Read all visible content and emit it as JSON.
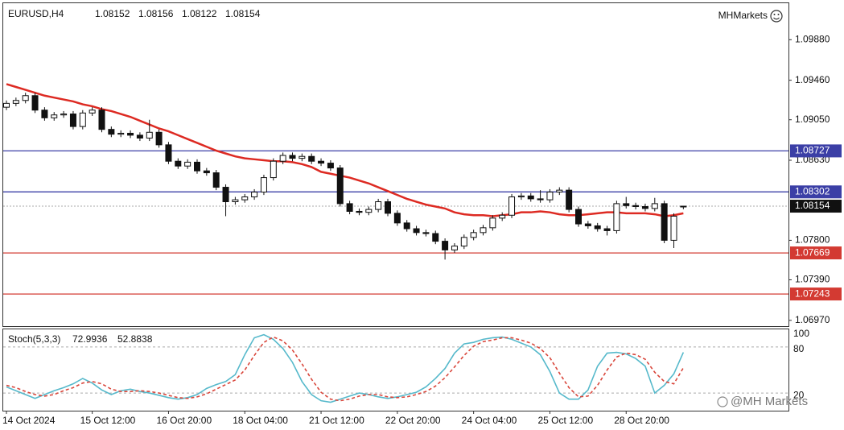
{
  "chart_data": {
    "type": "candlestick",
    "symbol": "EURUSD,H4",
    "brand": "MHMarkets",
    "watermark": "@MH Markets",
    "categories": [
      "14 Oct 2024",
      null,
      null,
      null,
      null,
      null,
      null,
      null,
      null,
      "15 Oct 12:00",
      null,
      null,
      null,
      null,
      null,
      null,
      null,
      "16 Oct 20:00",
      null,
      null,
      null,
      null,
      null,
      null,
      null,
      "18 Oct 04:00",
      null,
      null,
      null,
      null,
      null,
      null,
      null,
      "21 Oct 12:00",
      null,
      null,
      null,
      null,
      null,
      null,
      null,
      "22 Oct 20:00",
      null,
      null,
      null,
      null,
      null,
      null,
      null,
      "24 Oct 04:00",
      null,
      null,
      null,
      null,
      null,
      null,
      null,
      "25 Oct 12:00",
      null,
      null,
      null,
      null,
      null,
      null,
      null,
      "28 Oct 20:00",
      null,
      null,
      null,
      null,
      null,
      null
    ],
    "open": [
      1.0918,
      1.0922,
      1.0925,
      1.093,
      1.0915,
      1.0907,
      1.091,
      1.0911,
      1.0898,
      1.0912,
      1.0915,
      1.0895,
      1.089,
      1.0891,
      1.0889,
      1.0886,
      1.0892,
      1.0879,
      1.0862,
      1.0857,
      1.0861,
      1.0852,
      1.085,
      1.0835,
      1.082,
      1.0822,
      1.0825,
      1.083,
      1.0845,
      1.0862,
      1.0868,
      1.0865,
      1.0867,
      1.0862,
      1.086,
      1.0855,
      1.0818,
      1.081,
      1.0809,
      1.0812,
      1.082,
      1.0808,
      1.0798,
      1.0792,
      1.0788,
      1.0787,
      1.0779,
      1.077,
      1.0774,
      1.0783,
      1.0788,
      1.0793,
      1.0803,
      1.0806,
      1.0825,
      1.0826,
      1.0823,
      1.0822,
      1.083,
      1.0832,
      1.0812,
      1.0797,
      1.0795,
      1.0792,
      1.079,
      1.0818,
      1.0816,
      1.0815,
      1.0813,
      1.0818,
      1.078,
      1.08152
    ],
    "high": [
      1.0925,
      1.0928,
      1.0933,
      1.0933,
      1.0918,
      1.0913,
      1.0914,
      1.0914,
      1.0915,
      1.0918,
      1.0918,
      1.0898,
      1.0894,
      1.0894,
      1.0892,
      1.0905,
      1.0895,
      1.0882,
      1.0865,
      1.0864,
      1.0864,
      1.0855,
      1.0853,
      1.0838,
      1.0825,
      1.0828,
      1.0833,
      1.0848,
      1.0865,
      1.0871,
      1.0871,
      1.087,
      1.087,
      1.0865,
      1.0863,
      1.0858,
      1.0821,
      1.0813,
      1.0815,
      1.0823,
      1.0823,
      1.0811,
      1.0801,
      1.0795,
      1.0791,
      1.079,
      1.0782,
      1.0777,
      1.0786,
      1.0791,
      1.0796,
      1.0806,
      1.0809,
      1.0828,
      1.0829,
      1.0829,
      1.0832,
      1.0833,
      1.0835,
      1.0835,
      1.0815,
      1.08,
      1.0798,
      1.0795,
      1.0821,
      1.0825,
      1.0819,
      1.0818,
      1.0824,
      1.0821,
      1.0808,
      1.08156
    ],
    "low": [
      1.0915,
      1.0919,
      1.0922,
      1.0912,
      1.0904,
      1.0904,
      1.0907,
      1.0895,
      1.0895,
      1.0909,
      1.0892,
      1.0887,
      1.0887,
      1.0886,
      1.0883,
      1.0883,
      1.0876,
      1.0859,
      1.0854,
      1.0854,
      1.0849,
      1.0847,
      1.0832,
      1.0805,
      1.0817,
      1.0819,
      1.0822,
      1.0827,
      1.0842,
      1.0859,
      1.0862,
      1.0862,
      1.0859,
      1.0857,
      1.0852,
      1.0815,
      1.0807,
      1.0806,
      1.0806,
      1.0809,
      1.0805,
      1.0795,
      1.0789,
      1.0785,
      1.0784,
      1.0776,
      1.076,
      1.0767,
      1.0771,
      1.078,
      1.0785,
      1.079,
      1.08,
      1.0803,
      1.0822,
      1.082,
      1.0819,
      1.0819,
      1.0827,
      1.0809,
      1.0794,
      1.0792,
      1.0789,
      1.0785,
      1.0787,
      1.0813,
      1.0812,
      1.081,
      1.081,
      1.0777,
      1.0772,
      1.08122
    ],
    "close": [
      1.0922,
      1.0925,
      1.093,
      1.0915,
      1.0907,
      1.091,
      1.0911,
      1.0898,
      1.0912,
      1.0915,
      1.0895,
      1.089,
      1.0891,
      1.0889,
      1.0886,
      1.0892,
      1.0879,
      1.0862,
      1.0857,
      1.0861,
      1.0852,
      1.085,
      1.0835,
      1.082,
      1.0822,
      1.0825,
      1.083,
      1.0845,
      1.0862,
      1.0868,
      1.0865,
      1.0867,
      1.0862,
      1.086,
      1.0855,
      1.0818,
      1.081,
      1.0809,
      1.0812,
      1.082,
      1.0808,
      1.0798,
      1.0792,
      1.0788,
      1.0787,
      1.0779,
      1.077,
      1.0774,
      1.0783,
      1.0788,
      1.0793,
      1.0803,
      1.0806,
      1.0825,
      1.0826,
      1.0823,
      1.0822,
      1.083,
      1.0832,
      1.0812,
      1.0797,
      1.0795,
      1.0792,
      1.079,
      1.0818,
      1.0816,
      1.0815,
      1.0813,
      1.0818,
      1.078,
      1.0805,
      1.08154
    ],
    "ma": {
      "color": "#dd2a22",
      "values": [
        1.0942,
        1.0939,
        1.0936,
        1.0933,
        1.093,
        1.0928,
        1.0926,
        1.0924,
        1.0921,
        1.0919,
        1.0916,
        1.0914,
        1.0911,
        1.0908,
        1.0904,
        1.09,
        1.0896,
        1.0893,
        1.0889,
        1.0885,
        1.0881,
        1.0877,
        1.0873,
        1.087,
        1.0867,
        1.0865,
        1.0864,
        1.0863,
        1.0862,
        1.0862,
        1.0861,
        1.0859,
        1.0856,
        1.0851,
        1.0849,
        1.0847,
        1.0845,
        1.0842,
        1.0839,
        1.0835,
        1.0831,
        1.0827,
        1.0823,
        1.082,
        1.0817,
        1.0815,
        1.0813,
        1.0809,
        1.0807,
        1.0806,
        1.0806,
        1.0805,
        1.0806,
        1.0807,
        1.0809,
        1.0809,
        1.081,
        1.0809,
        1.0807,
        1.0806,
        1.0806,
        1.0807,
        1.0808,
        1.0809,
        1.0809,
        1.0808,
        1.0808,
        1.0808,
        1.0807,
        1.0805,
        1.0806,
        1.0808
      ]
    },
    "ylim": [
      1.0691,
      1.1025
    ],
    "yticks": [
      {
        "value": 1.0988,
        "label": "1.09880"
      },
      {
        "value": 1.0946,
        "label": "1.09460"
      },
      {
        "value": 1.0905,
        "label": "1.09050"
      },
      {
        "value": 1.0863,
        "label": "1.08630"
      },
      {
        "value": 1.078,
        "label": "1.07800"
      },
      {
        "value": 1.0739,
        "label": "1.07390"
      },
      {
        "value": 1.0697,
        "label": "1.06970"
      }
    ],
    "levels": [
      {
        "value": 1.08727,
        "color": "#3b3fa6"
      },
      {
        "value": 1.08302,
        "color": "#3b3fa6"
      },
      {
        "value": 1.07669,
        "color": "#d33a32"
      },
      {
        "value": 1.07243,
        "color": "#d33a32"
      }
    ],
    "up_color": "#ffffff",
    "down_color": "#111111",
    "oscillator": {
      "title": "Stoch(5,3,3)",
      "ylim": [
        -3,
        103
      ],
      "yticks": [
        100,
        80,
        20
      ],
      "levels": [
        80,
        20
      ],
      "series": [
        {
          "color": "#56b9cb",
          "values": [
            28,
            23,
            18,
            13,
            18,
            23,
            27,
            32,
            39,
            33,
            24,
            18,
            23,
            25,
            22,
            20,
            17,
            14,
            12,
            14,
            18,
            26,
            31,
            35,
            44,
            70,
            92,
            96,
            90,
            78,
            60,
            35,
            18,
            10,
            8,
            12,
            16,
            20,
            18,
            15,
            13,
            15,
            18,
            21,
            28,
            39,
            52,
            72,
            84,
            86,
            90,
            92,
            93,
            90,
            85,
            80,
            70,
            48,
            20,
            12,
            12,
            24,
            55,
            72,
            73,
            71,
            65,
            55,
            20,
            30,
            45,
            72.9936
          ]
        },
        {
          "color": "#d9463b",
          "dash": true,
          "values": [
            30,
            27,
            22,
            18,
            16,
            18,
            23,
            27,
            33,
            35,
            32,
            25,
            22,
            22,
            23,
            22,
            20,
            17,
            14,
            13,
            15,
            19,
            25,
            31,
            37,
            50,
            69,
            86,
            93,
            88,
            76,
            58,
            38,
            21,
            12,
            10,
            12,
            16,
            18,
            18,
            15,
            14,
            15,
            18,
            22,
            29,
            40,
            54,
            69,
            81,
            87,
            89,
            92,
            92,
            89,
            85,
            78,
            66,
            46,
            27,
            15,
            16,
            30,
            50,
            67,
            72,
            70,
            64,
            47,
            35,
            32,
            52.8838
          ]
        }
      ]
    }
  }
}
